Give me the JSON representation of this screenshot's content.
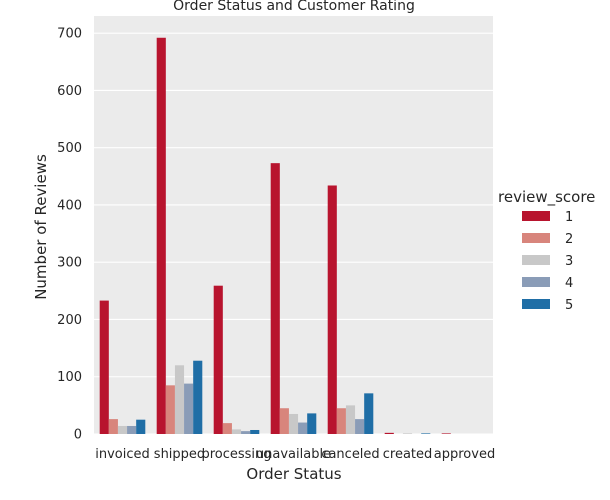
{
  "chart_data": {
    "type": "bar",
    "title": "Order Status and Customer Rating",
    "xlabel": "Order Status",
    "ylabel": "Number of Reviews",
    "ylim": [
      0,
      730
    ],
    "yticks": [
      0,
      100,
      200,
      300,
      400,
      500,
      600,
      700
    ],
    "grid": true,
    "legend_title": "review_score",
    "legend_position": "right",
    "categories": [
      "invoiced",
      "shipped",
      "processing",
      "unavailable",
      "canceled",
      "created",
      "approved"
    ],
    "series": [
      {
        "name": "1",
        "color": "#b8142e",
        "values": [
          233,
          692,
          259,
          473,
          434,
          2,
          1
        ]
      },
      {
        "name": "2",
        "color": "#d8857c",
        "values": [
          26,
          85,
          19,
          45,
          45,
          0,
          0
        ]
      },
      {
        "name": "3",
        "color": "#c8c8c8",
        "values": [
          14,
          120,
          8,
          35,
          50,
          1,
          0
        ]
      },
      {
        "name": "4",
        "color": "#8a9cb7",
        "values": [
          14,
          88,
          5,
          20,
          26,
          0,
          0
        ]
      },
      {
        "name": "5",
        "color": "#1f6ea6",
        "values": [
          25,
          128,
          7,
          36,
          71,
          1,
          0
        ]
      }
    ]
  }
}
